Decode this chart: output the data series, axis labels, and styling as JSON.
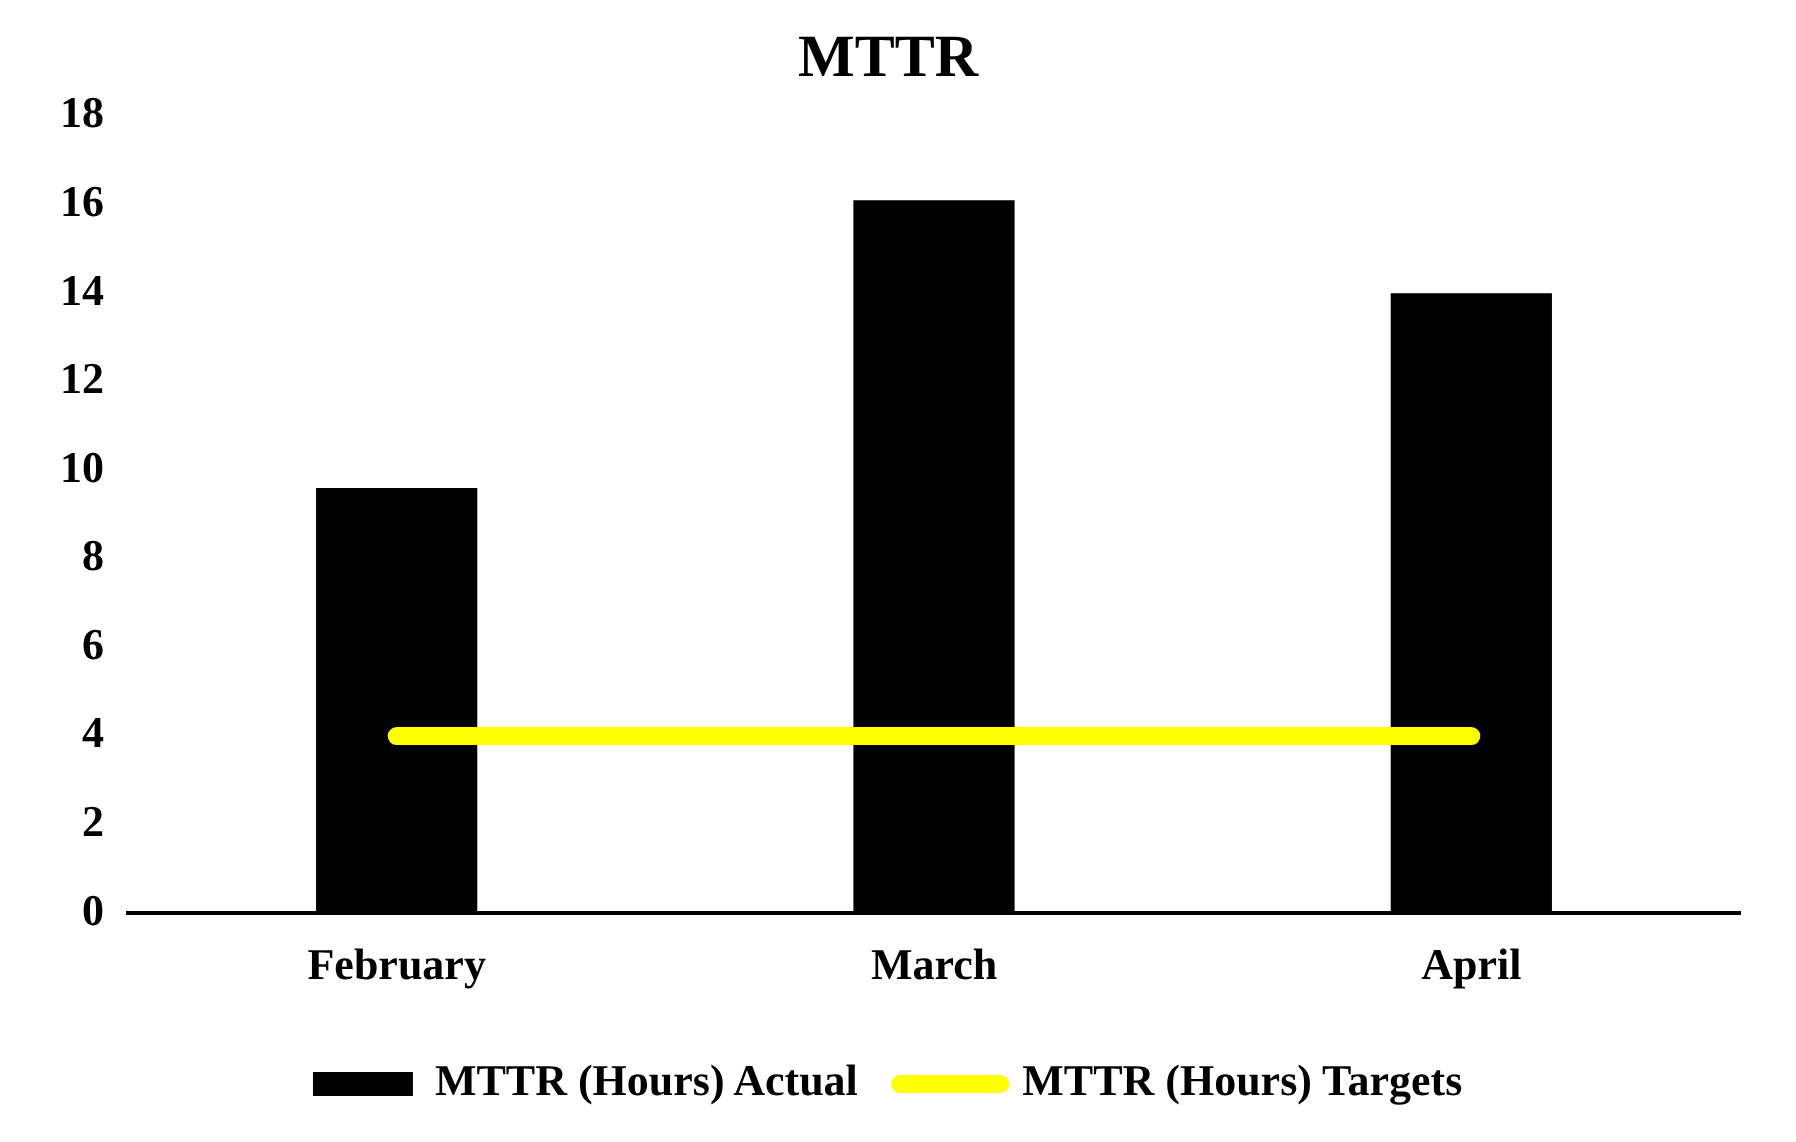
{
  "chart_data": {
    "type": "bar",
    "title": "MTTR",
    "categories": [
      "February",
      "March",
      "April"
    ],
    "series": [
      {
        "name": "MTTR (Hours) Actual",
        "color": "#000000",
        "values": [
          9.6,
          16.1,
          14.0
        ]
      },
      {
        "name": "MTTR (Hours) Targets",
        "type": "line",
        "color": "#ffff00",
        "values": [
          4,
          4,
          4
        ]
      }
    ],
    "ylim": [
      0,
      18
    ],
    "yticks": [
      0,
      2,
      4,
      6,
      8,
      10,
      12,
      14,
      16,
      18
    ],
    "grid": false,
    "legend": "bottom",
    "marker": "none",
    "line_style": "solid"
  }
}
